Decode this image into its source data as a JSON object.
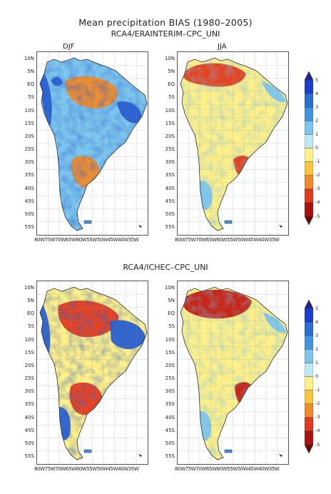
{
  "title": "Mean precipitation BIAS (1980–2005)",
  "rows": [
    {
      "title": "RCA4/ERAINTERIM–CPC_UNI",
      "seasons": [
        "DJF",
        "JJA"
      ]
    },
    {
      "title": "RCA4/ICHEC–CPC_UNI",
      "seasons": []
    }
  ],
  "lat_ticks": [
    "10N",
    "5N",
    "EQ",
    "5S",
    "10S",
    "15S",
    "20S",
    "25S",
    "30S",
    "35S",
    "40S",
    "45S",
    "50S",
    "55S"
  ],
  "lon_ticks": [
    "80W",
    "75W",
    "70W",
    "65W",
    "60W",
    "55W",
    "50W",
    "45W",
    "40W",
    "35W"
  ],
  "colorbar": {
    "levels": [
      "5",
      "4",
      "3",
      "2",
      "1",
      "0",
      "-1",
      "-2",
      "-3",
      "-4",
      "-5"
    ],
    "colors": [
      "#2b1f8f",
      "#1a3fd0",
      "#2a6fd6",
      "#3e95dd",
      "#7cc5ee",
      "#bfe8f5",
      "#fff088",
      "#f9c53d",
      "#f08a2a",
      "#e33a1f",
      "#a9120e",
      "#6b0805"
    ]
  },
  "map": {
    "ocean": "#ffffff",
    "panel_colors": {
      "row1_djf": {
        "base": "#7cc5ee",
        "wet": "#2a5fd0",
        "dry": "#f08a2a"
      },
      "row1_jja": {
        "base": "#fff088",
        "wet": "#7cc5ee",
        "dry": "#e33a1f"
      },
      "row2_djf": {
        "base": "#fff088",
        "wet": "#2a5fd0",
        "dry": "#e33a1f"
      },
      "row2_jja": {
        "base": "#fff088",
        "wet": "#7cc5ee",
        "dry": "#c41a12"
      }
    }
  }
}
